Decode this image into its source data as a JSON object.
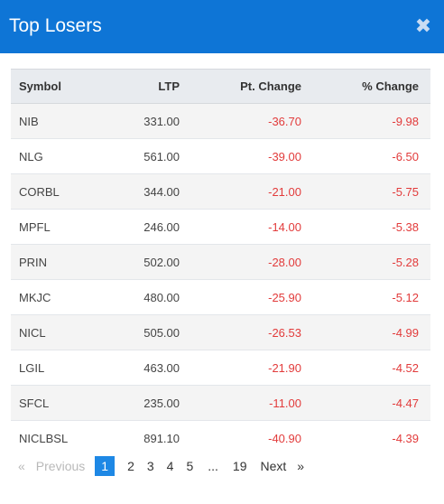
{
  "header": {
    "title": "Top Losers",
    "close_glyph": "✖"
  },
  "table": {
    "columns": [
      "Symbol",
      "LTP",
      "Pt. Change",
      "% Change"
    ],
    "rows": [
      {
        "symbol": "NIB",
        "ltp": "331.00",
        "pt": "-36.70",
        "pct": "-9.98"
      },
      {
        "symbol": "NLG",
        "ltp": "561.00",
        "pt": "-39.00",
        "pct": "-6.50"
      },
      {
        "symbol": "CORBL",
        "ltp": "344.00",
        "pt": "-21.00",
        "pct": "-5.75"
      },
      {
        "symbol": "MPFL",
        "ltp": "246.00",
        "pt": "-14.00",
        "pct": "-5.38"
      },
      {
        "symbol": "PRIN",
        "ltp": "502.00",
        "pt": "-28.00",
        "pct": "-5.28"
      },
      {
        "symbol": "MKJC",
        "ltp": "480.00",
        "pt": "-25.90",
        "pct": "-5.12"
      },
      {
        "symbol": "NICL",
        "ltp": "505.00",
        "pt": "-26.53",
        "pct": "-4.99"
      },
      {
        "symbol": "LGIL",
        "ltp": "463.00",
        "pt": "-21.90",
        "pct": "-4.52"
      },
      {
        "symbol": "SFCL",
        "ltp": "235.00",
        "pt": "-11.00",
        "pct": "-4.47"
      },
      {
        "symbol": "NICLBSL",
        "ltp": "891.10",
        "pt": "-40.90",
        "pct": "-4.39"
      }
    ]
  },
  "pagination": {
    "prev_arrow": "«",
    "prev_label": "Previous",
    "pages": [
      "1",
      "2",
      "3",
      "4",
      "5"
    ],
    "active_page": "1",
    "ellipsis": "...",
    "last_page": "19",
    "next_label": "Next",
    "next_arrow": "»"
  },
  "colors": {
    "header_bg": "#0e75d6",
    "negative": "#e23b3b",
    "active_page": "#1e88e5"
  }
}
